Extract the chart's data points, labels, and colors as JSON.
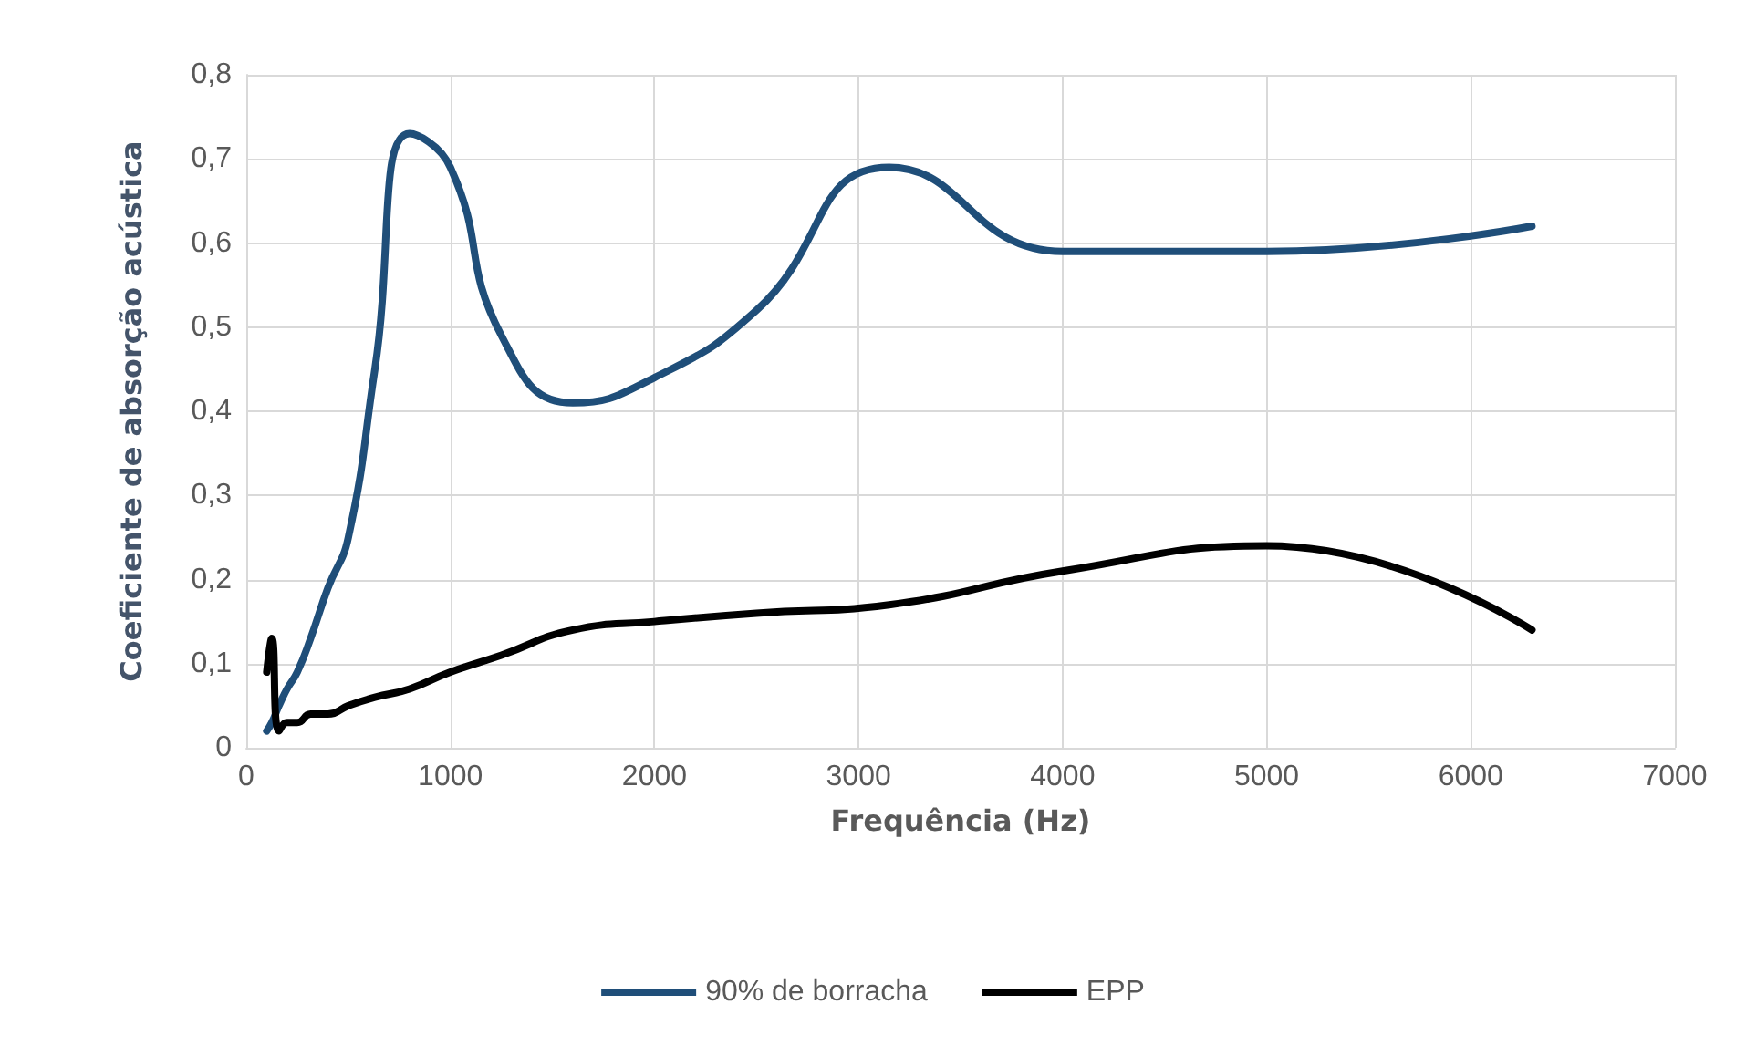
{
  "chart_data": {
    "type": "line",
    "xlabel": "Frequência (Hz)",
    "ylabel": "Coeficiente de absorção acústica",
    "xlim": [
      0,
      7000
    ],
    "xticks": [
      0,
      1000,
      2000,
      3000,
      4000,
      5000,
      6000,
      7000
    ],
    "ylim": [
      0,
      0.8
    ],
    "yticks": [
      0,
      {
        "value": 0.1,
        "label": "0,1"
      },
      {
        "value": 0.2,
        "label": "0,2"
      },
      {
        "value": 0.3,
        "label": "0,3"
      },
      {
        "value": 0.4,
        "label": "0,4"
      },
      {
        "value": 0.5,
        "label": "0,5"
      },
      {
        "value": 0.6,
        "label": "0,6"
      },
      {
        "value": 0.7,
        "label": "0,7"
      },
      {
        "value": 0.8,
        "label": "0,8"
      }
    ],
    "x": [
      100,
      125,
      160,
      200,
      250,
      315,
      400,
      500,
      630,
      800,
      1000,
      1250,
      1600,
      2000,
      2500,
      3150,
      4000,
      5000,
      6300
    ],
    "series": [
      {
        "name": "90% de borracha",
        "color": "#1f4e79",
        "values": [
          0.02,
          0.03,
          0.05,
          0.07,
          0.09,
          0.13,
          0.19,
          0.25,
          0.45,
          0.73,
          0.69,
          0.49,
          0.41,
          0.44,
          0.52,
          0.69,
          0.59,
          0.59,
          0.62
        ]
      },
      {
        "name": "EPP",
        "color": "#000000",
        "values": [
          0.09,
          0.13,
          0.02,
          0.03,
          0.03,
          0.04,
          0.04,
          0.05,
          0.06,
          0.07,
          0.09,
          0.11,
          0.14,
          0.15,
          0.16,
          0.17,
          0.21,
          0.24,
          0.14
        ]
      }
    ],
    "grid": true,
    "legend": "bottom",
    "marker": "none",
    "line_style": "solid"
  }
}
